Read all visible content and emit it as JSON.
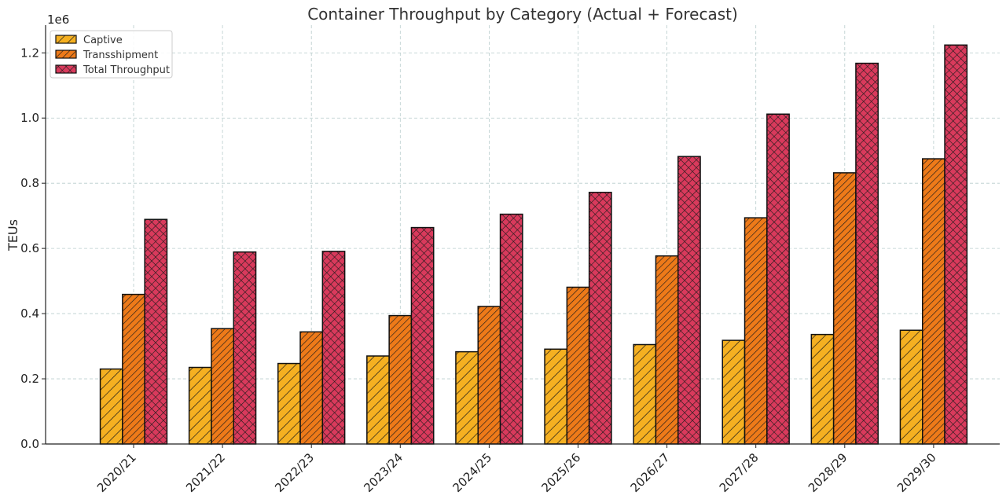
{
  "chart_data": {
    "type": "bar",
    "title": "Container Throughput by Category (Actual + Forecast)",
    "xlabel": "",
    "ylabel": "TEUs",
    "y_offset_label": "1e6",
    "ylim": [
      0,
      1.285
    ],
    "y_ticks": [
      0.0,
      0.2,
      0.4,
      0.6,
      0.8,
      1.0,
      1.2
    ],
    "grid": true,
    "legend_position": "top-left",
    "categories": [
      "2020/21",
      "2021/22",
      "2022/23",
      "2023/24",
      "2024/25",
      "2025/26",
      "2026/27",
      "2027/28",
      "2028/29",
      "2029/30"
    ],
    "series": [
      {
        "name": "Captive",
        "color": "#F5B021",
        "hatch": "diagonal-single",
        "values": [
          0.23,
          0.235,
          0.247,
          0.27,
          0.283,
          0.291,
          0.305,
          0.318,
          0.336,
          0.349
        ]
      },
      {
        "name": "Transshipment",
        "color": "#EE7A19",
        "hatch": "diagonal-dense",
        "values": [
          0.459,
          0.354,
          0.344,
          0.394,
          0.422,
          0.481,
          0.577,
          0.694,
          0.832,
          0.875
        ]
      },
      {
        "name": "Total Throughput",
        "color": "#D93A5C",
        "hatch": "crosshatch",
        "values": [
          0.689,
          0.589,
          0.591,
          0.664,
          0.705,
          0.772,
          0.882,
          1.012,
          1.168,
          1.224
        ]
      }
    ]
  }
}
